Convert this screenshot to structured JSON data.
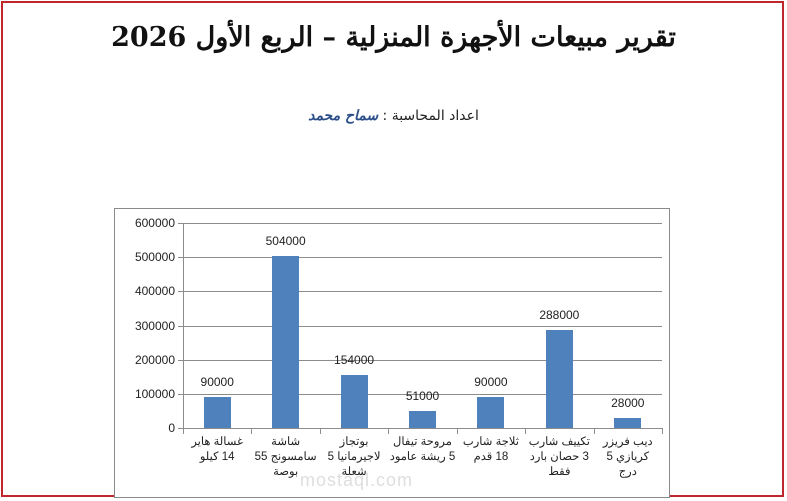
{
  "document": {
    "title": "تقرير مبيعات الأجهزة المنزلية – الربع الأول 2026",
    "prepared_by_label": "اعداد المحاسبة :",
    "accountant_name": "سماح محمد",
    "watermark": "mostaql.com",
    "border_color": "#c0272d"
  },
  "chart_data": {
    "type": "bar",
    "title": "",
    "xlabel": "",
    "ylabel": "",
    "ylim": [
      0,
      600000
    ],
    "yticks": [
      "0",
      "100000",
      "200000",
      "300000",
      "400000",
      "500000",
      "600000"
    ],
    "grid": true,
    "legend": "none",
    "bar_color": "#4f81bd",
    "categories": [
      "غسالة هاير 14 كيلو",
      "شاشة سامسونج 55 بوصة",
      "بوتجاز لاجيرمانيا 5 شعلة",
      "مروحة تيفال 5 ريشة عامود",
      "ثلاجة شارب 18 قدم",
      "تكييف شارب 3 حصان بارد فقط",
      "ديب فريزر كريازي 5 درج"
    ],
    "category_lines": [
      [
        "غسالة هاير",
        "14 كيلو"
      ],
      [
        "شاشة",
        "سامسونج 55",
        "بوصة"
      ],
      [
        "بوتجاز",
        "لاجيرمانيا 5",
        "شعلة"
      ],
      [
        "مروحة تيفال",
        "5 ريشة عامود"
      ],
      [
        "ثلاجة شارب",
        "18 قدم"
      ],
      [
        "تكييف شارب",
        "3 حصان بارد",
        "فقط"
      ],
      [
        "ديب فريزر",
        "كريازي 5",
        "درج"
      ]
    ],
    "values": [
      90000,
      504000,
      154000,
      51000,
      90000,
      288000,
      28000
    ],
    "data_labels": [
      "90000",
      "504000",
      "154000",
      "51000",
      "90000",
      "288000",
      "28000"
    ]
  }
}
